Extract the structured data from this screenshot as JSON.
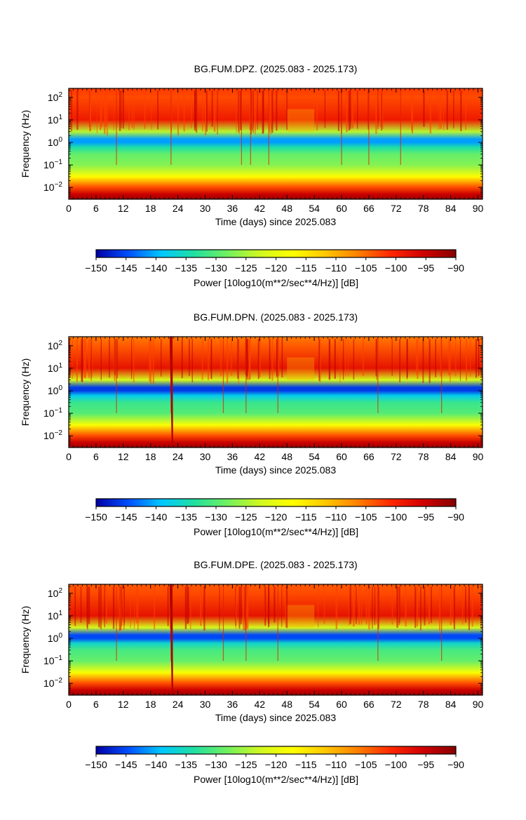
{
  "figure": {
    "colorbar_label": "Power [10log10(m**2/sec**4/Hz)] [dB]",
    "colorbar_ticks": [
      "−150",
      "−145",
      "−140",
      "−135",
      "−130",
      "−125",
      "−120",
      "−115",
      "−110",
      "−105",
      "−100",
      "−95",
      "−90"
    ],
    "colormap": [
      "#0000a6",
      "#0050ff",
      "#00c8ff",
      "#20e0a0",
      "#70f060",
      "#d0f820",
      "#ffff00",
      "#ffc800",
      "#ff8000",
      "#ff2800",
      "#d00000",
      "#880000"
    ]
  },
  "chart_data": [
    {
      "type": "heatmap",
      "title": "BG.FUM.DPZ. (2025.083 - 2025.173)",
      "xlabel": "Time (days) since 2025.083",
      "ylabel": "Frequency (Hz)",
      "xlim": [
        0,
        91
      ],
      "x_ticks": [
        "0",
        "6",
        "12",
        "18",
        "24",
        "30",
        "36",
        "42",
        "48",
        "54",
        "60",
        "66",
        "72",
        "78",
        "84",
        "90"
      ],
      "y_scale": "log",
      "ylim": [
        0.003,
        250
      ],
      "y_ticks": [
        {
          "base": "10",
          "exp": "2",
          "value": 100
        },
        {
          "base": "10",
          "exp": "1",
          "value": 10
        },
        {
          "base": "10",
          "exp": "0",
          "value": 1
        },
        {
          "base": "10",
          "exp": "−1",
          "value": 0.1
        },
        {
          "base": "10",
          "exp": "−2",
          "value": 0.01
        }
      ],
      "clim": [
        -150,
        -90
      ],
      "profile": {
        "freq_hz": [
          250,
          100,
          10,
          3,
          1.4,
          1,
          0.6,
          0.3,
          0.1,
          0.03,
          0.01,
          0.005,
          0.003
        ],
        "power_db": [
          -102,
          -103,
          -99,
          -124,
          -141,
          -141,
          -134,
          -129,
          -127,
          -117,
          -103,
          -95,
          -92
        ]
      },
      "events_day": [
        10.5,
        22.5,
        38,
        40,
        44,
        60,
        66,
        73
      ],
      "gap_days": [
        48,
        54
      ]
    },
    {
      "type": "heatmap",
      "title": "BG.FUM.DPN. (2025.083 - 2025.173)",
      "xlabel": "Time (days) since 2025.083",
      "ylabel": "Frequency (Hz)",
      "xlim": [
        0,
        91
      ],
      "x_ticks": [
        "0",
        "6",
        "12",
        "18",
        "24",
        "30",
        "36",
        "42",
        "48",
        "54",
        "60",
        "66",
        "72",
        "78",
        "84",
        "90"
      ],
      "y_scale": "log",
      "ylim": [
        0.003,
        250
      ],
      "y_ticks": [
        {
          "base": "10",
          "exp": "2",
          "value": 100
        },
        {
          "base": "10",
          "exp": "1",
          "value": 10
        },
        {
          "base": "10",
          "exp": "0",
          "value": 1
        },
        {
          "base": "10",
          "exp": "−1",
          "value": 0.1
        },
        {
          "base": "10",
          "exp": "−2",
          "value": 0.01
        }
      ],
      "clim": [
        -150,
        -90
      ],
      "profile": {
        "freq_hz": [
          250,
          100,
          10,
          3,
          1.4,
          1,
          0.6,
          0.3,
          0.1,
          0.03,
          0.01,
          0.005,
          0.003
        ],
        "power_db": [
          -106,
          -104,
          -98,
          -122,
          -146,
          -146,
          -138,
          -132,
          -130,
          -118,
          -103,
          -95,
          -92
        ]
      },
      "events_day": [
        10.5,
        22.5,
        34,
        39,
        46,
        68,
        82
      ],
      "strong_event_day": 22.5,
      "gap_days": [
        48,
        54
      ]
    },
    {
      "type": "heatmap",
      "title": "BG.FUM.DPE. (2025.083 - 2025.173)",
      "xlabel": "Time (days) since 2025.083",
      "ylabel": "Frequency (Hz)",
      "xlim": [
        0,
        91
      ],
      "x_ticks": [
        "0",
        "6",
        "12",
        "18",
        "24",
        "30",
        "36",
        "42",
        "48",
        "54",
        "60",
        "66",
        "72",
        "78",
        "84",
        "90"
      ],
      "y_scale": "log",
      "ylim": [
        0.003,
        250
      ],
      "y_ticks": [
        {
          "base": "10",
          "exp": "2",
          "value": 100
        },
        {
          "base": "10",
          "exp": "1",
          "value": 10
        },
        {
          "base": "10",
          "exp": "0",
          "value": 1
        },
        {
          "base": "10",
          "exp": "−1",
          "value": 0.1
        },
        {
          "base": "10",
          "exp": "−2",
          "value": 0.01
        }
      ],
      "clim": [
        -150,
        -90
      ],
      "profile": {
        "freq_hz": [
          250,
          100,
          10,
          3,
          1.4,
          1,
          0.6,
          0.3,
          0.1,
          0.03,
          0.01,
          0.005,
          0.003
        ],
        "power_db": [
          -104,
          -103,
          -98,
          -122,
          -145,
          -145,
          -136,
          -131,
          -129,
          -118,
          -103,
          -95,
          -92
        ]
      },
      "events_day": [
        10.5,
        22.5,
        34,
        39,
        46,
        68,
        82
      ],
      "strong_event_day": 22.5,
      "gap_days": [
        48,
        54
      ]
    }
  ]
}
